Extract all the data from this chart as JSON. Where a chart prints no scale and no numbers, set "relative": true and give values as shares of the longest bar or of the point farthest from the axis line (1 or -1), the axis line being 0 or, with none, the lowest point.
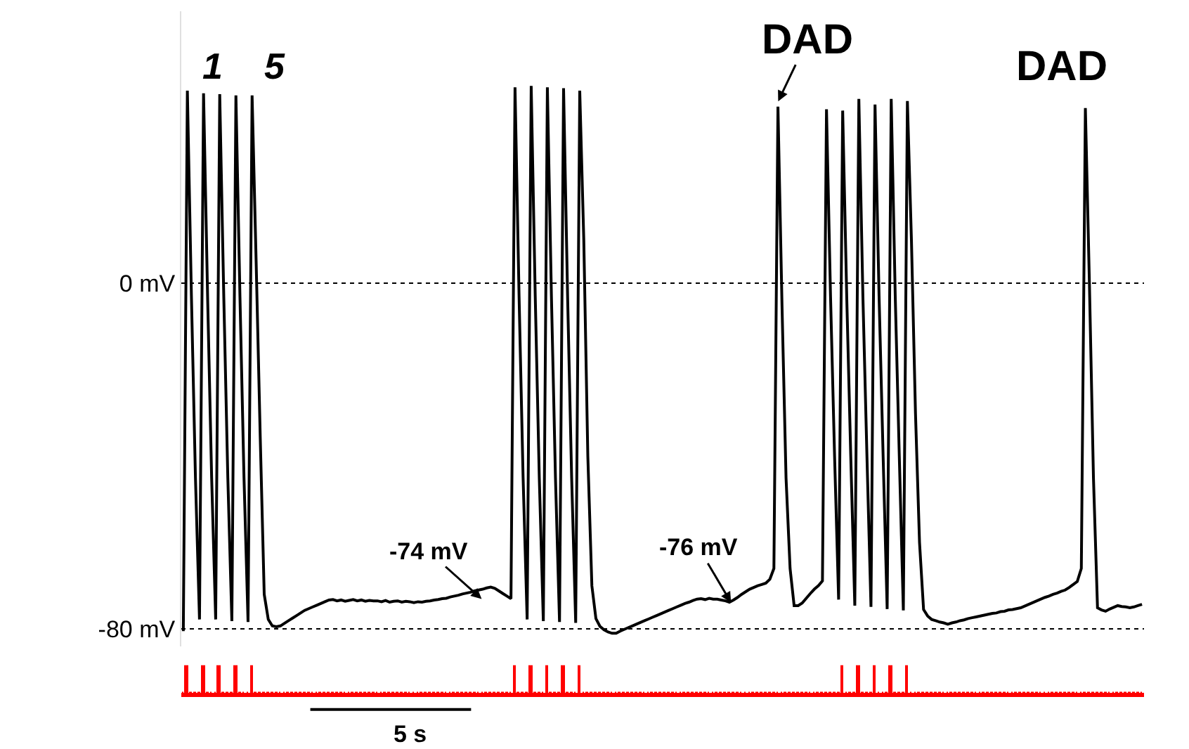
{
  "chart_data": [
    {
      "type": "line",
      "ylim": [
        -84,
        63
      ],
      "yticks": [
        {
          "value": 0,
          "label": "0 mV"
        },
        {
          "value": -80,
          "label": "-80 mV"
        }
      ],
      "tick_labels": "y",
      "grid": "y",
      "line_style": "solid",
      "categories": [
        null,
        null,
        null,
        null,
        null,
        null,
        null,
        null,
        null,
        null,
        null,
        null,
        null,
        null,
        null,
        null,
        null,
        null,
        null,
        null,
        null,
        null,
        null,
        null,
        null,
        null,
        null,
        null,
        null,
        null,
        null,
        null,
        null,
        null,
        null,
        null,
        null,
        null,
        null,
        null,
        null,
        null,
        null,
        null,
        null,
        null,
        null,
        null,
        null,
        null,
        null,
        null,
        null,
        null,
        null,
        null,
        null,
        null,
        null,
        null,
        null,
        null,
        null,
        null,
        null,
        null,
        null,
        null,
        null,
        null,
        null,
        null,
        null,
        null,
        null,
        null,
        null,
        null,
        null,
        null,
        null,
        null,
        null,
        null,
        null,
        null,
        null,
        null,
        null,
        null,
        null,
        null,
        null,
        null,
        null,
        null,
        null,
        null,
        null,
        null,
        null,
        null,
        null,
        null,
        null,
        null,
        null,
        null,
        null,
        null,
        null,
        null,
        null,
        null,
        null,
        null,
        null,
        null,
        null,
        null,
        null,
        null,
        null,
        null,
        null,
        null,
        null,
        null,
        null,
        null,
        null,
        null,
        null,
        null,
        null,
        null,
        null,
        null,
        null,
        null,
        null,
        null,
        null,
        null,
        null,
        null,
        null,
        null,
        null,
        null,
        null,
        null,
        null,
        null,
        null,
        null,
        null,
        null,
        null,
        null,
        null,
        null,
        null,
        null,
        null,
        null,
        null,
        null,
        null,
        null,
        null,
        null,
        null,
        null,
        null,
        null,
        null,
        null,
        null,
        null,
        null,
        null,
        null,
        null,
        null,
        null,
        null,
        null,
        null,
        null,
        null,
        null,
        null,
        null,
        null,
        null,
        null,
        null,
        null,
        null,
        null,
        null,
        null,
        null,
        null,
        null,
        null,
        null,
        null,
        null,
        null,
        null,
        null,
        null,
        null,
        null,
        null,
        null,
        null,
        null,
        null,
        null,
        null,
        null,
        null,
        null,
        null,
        null,
        null,
        null,
        null,
        null,
        null,
        null,
        null,
        null,
        null,
        null
      ],
      "series": [
        {
          "color": "#000000",
          "values": [
            -80.5,
            44.6,
            -3,
            -45,
            -77.8,
            44.0,
            -3,
            -45,
            -77.8,
            43.8,
            -3,
            -45,
            -78.2,
            43.5,
            -3,
            -45,
            -78.4,
            43.5,
            5,
            -35,
            -72,
            -77.8,
            -79.3,
            -79.5,
            -79.3,
            -78.7,
            -78.1,
            -77.5,
            -76.9,
            -76.3,
            -75.7,
            -75.3,
            -74.9,
            -74.5,
            -74.1,
            -73.7,
            -73.3,
            -73.2,
            -73.5,
            -73.3,
            -73.6,
            -73.4,
            -73.2,
            -73.5,
            -73.3,
            -73.6,
            -73.4,
            -73.5,
            -73.5,
            -73.7,
            -73.4,
            -73.8,
            -73.6,
            -73.5,
            -73.8,
            -73.6,
            -73.7,
            -73.9,
            -73.7,
            -73.8,
            -73.6,
            -73.5,
            -73.3,
            -73.2,
            -73.0,
            -72.9,
            -72.6,
            -72.4,
            -72.2,
            -71.9,
            -71.7,
            -71.5,
            -71.2,
            -71.0,
            -70.8,
            -70.5,
            -70.3,
            -70.6,
            -71.2,
            -71.8,
            -72.4,
            -73.0,
            45.4,
            -3,
            -45,
            -77.8,
            45.7,
            -3,
            -45,
            -78.2,
            45.4,
            -3,
            -45,
            -78.4,
            45.2,
            -3,
            -45,
            -78.6,
            44.6,
            10,
            -40,
            -70,
            -77.6,
            -79.4,
            -80.2,
            -80.7,
            -81.0,
            -81.0,
            -80.5,
            -80.1,
            -79.7,
            -79.3,
            -78.9,
            -78.5,
            -78.1,
            -77.7,
            -77.3,
            -76.9,
            -76.5,
            -76.1,
            -75.7,
            -75.3,
            -74.9,
            -74.5,
            -74.1,
            -73.8,
            -73.4,
            -73.1,
            -73.0,
            -73.2,
            -72.9,
            -73.1,
            -73.1,
            -73.3,
            -73.5,
            -73.8,
            -73.3,
            -72.7,
            -72.0,
            -71.4,
            -70.8,
            -70.4,
            -70.0,
            -69.7,
            -69.4,
            -68.5,
            -66.0,
            40.9,
            -5,
            -45,
            -66,
            -74.6,
            -74.6,
            -74.0,
            -72.9,
            -71.8,
            -70.8,
            -70.0,
            -68.9,
            40.3,
            -3,
            -40,
            -73.2,
            40.0,
            -3,
            -40,
            -74.6,
            42.7,
            -3,
            -40,
            -74.9,
            41.4,
            -3,
            -40,
            -75.4,
            42.7,
            -3,
            -40,
            -75.7,
            42.2,
            10,
            -30,
            -60,
            -75.5,
            -77.0,
            -77.8,
            -78.1,
            -78.4,
            -78.6,
            -78.9,
            -78.6,
            -78.4,
            -78.1,
            -77.9,
            -77.6,
            -77.4,
            -77.2,
            -77.0,
            -76.8,
            -76.6,
            -76.4,
            -76.3,
            -76.0,
            -75.9,
            -75.6,
            -75.5,
            -75.3,
            -75.1,
            -74.7,
            -74.3,
            -73.9,
            -73.5,
            -73.1,
            -72.7,
            -72.4,
            -72.0,
            -71.7,
            -71.3,
            -71.0,
            -70.4,
            -69.7,
            -69.0,
            -66,
            40.6,
            0,
            -45,
            -75.1,
            -75.6,
            -75.9,
            -75.4,
            -75.0,
            -74.6,
            -74.8,
            -74.9,
            -75.1,
            -74.9,
            -74.6,
            -74.3
          ]
        }
      ],
      "annotations": [
        "1",
        "5",
        "DAD",
        "DAD",
        "-74 mV",
        "-76 mV",
        "5 s"
      ]
    },
    {
      "type": "bar",
      "relative": true,
      "tick_labels": false,
      "categories": [
        null,
        null,
        null,
        null,
        null,
        null,
        null,
        null,
        null,
        null,
        null,
        null,
        null,
        null,
        null,
        null,
        null,
        null,
        null,
        null,
        null,
        null,
        null,
        null,
        null,
        null,
        null,
        null,
        null,
        null,
        null,
        null,
        null,
        null,
        null,
        null,
        null,
        null,
        null,
        null,
        null,
        null,
        null,
        null,
        null,
        null,
        null,
        null,
        null,
        null,
        null,
        null,
        null,
        null,
        null,
        null,
        null,
        null,
        null,
        null,
        null,
        null,
        null,
        null,
        null,
        null,
        null,
        null,
        null,
        null,
        null,
        null,
        null,
        null,
        null,
        null,
        null,
        null,
        null,
        null,
        null,
        null,
        null,
        null,
        null,
        null,
        null,
        null,
        null,
        null,
        null,
        null,
        null,
        null,
        null,
        null,
        null,
        null,
        null,
        null,
        null,
        null,
        null,
        null,
        null,
        null,
        null,
        null,
        null,
        null,
        null,
        null,
        null,
        null,
        null,
        null,
        null,
        null,
        null,
        null,
        null,
        null,
        null,
        null,
        null,
        null,
        null,
        null,
        null,
        null,
        null,
        null,
        null,
        null,
        null,
        null,
        null,
        null,
        null,
        null,
        null,
        null,
        null,
        null,
        null,
        null,
        null,
        null,
        null,
        null,
        null,
        null,
        null,
        null,
        null,
        null,
        null,
        null,
        null,
        null,
        null,
        null,
        null,
        null,
        null,
        null,
        null,
        null,
        null,
        null,
        null,
        null,
        null,
        null,
        null,
        null,
        null,
        null,
        null,
        null,
        null,
        null,
        null,
        null,
        null,
        null,
        null,
        null,
        null,
        null,
        null,
        null,
        null,
        null,
        null,
        null,
        null,
        null,
        null,
        null,
        null,
        null,
        null,
        null,
        null,
        null,
        null,
        null,
        null,
        null,
        null,
        null,
        null,
        null,
        null,
        null,
        null,
        null,
        null,
        null,
        null,
        null,
        null,
        null,
        null,
        null,
        null,
        null,
        null,
        null,
        null,
        null,
        null,
        null,
        null,
        null,
        null,
        null
      ],
      "series": [
        {
          "color": "#ff0000",
          "values": [
            0,
            1,
            0,
            0,
            0,
            1,
            0,
            0,
            0,
            1,
            0,
            0,
            0,
            1,
            0,
            0,
            0,
            1,
            0,
            0,
            0,
            0,
            0,
            0,
            0,
            0,
            0,
            0,
            0,
            0,
            0,
            0,
            0,
            0,
            0,
            0,
            0,
            0,
            0,
            0,
            0,
            0,
            0,
            0,
            0,
            0,
            0,
            0,
            0,
            0,
            0,
            0,
            0,
            0,
            0,
            0,
            0,
            0,
            0,
            0,
            0,
            0,
            0,
            0,
            0,
            0,
            0,
            0,
            0,
            0,
            0,
            0,
            0,
            0,
            0,
            0,
            0,
            0,
            0,
            0,
            0,
            0,
            1,
            0,
            0,
            0,
            1,
            0,
            0,
            0,
            1,
            0,
            0,
            0,
            1,
            0,
            0,
            0,
            1,
            0,
            0,
            0,
            0,
            0,
            0,
            0,
            0,
            0,
            0,
            0,
            0,
            0,
            0,
            0,
            0,
            0,
            0,
            0,
            0,
            0,
            0,
            0,
            0,
            0,
            0,
            0,
            0,
            0,
            0,
            0,
            0,
            0,
            0,
            0,
            0,
            0,
            0,
            0,
            0,
            0,
            0,
            0,
            0,
            0,
            0,
            0,
            0,
            0,
            0,
            0,
            0,
            0,
            0,
            0,
            0,
            0,
            0,
            0,
            0,
            0,
            0,
            0,
            0,
            1,
            0,
            0,
            0,
            1,
            0,
            0,
            0,
            1,
            0,
            0,
            0,
            1,
            0,
            0,
            0,
            1,
            0,
            0,
            0,
            0,
            0,
            0,
            0,
            0,
            0,
            0,
            0,
            0,
            0,
            0,
            0,
            0,
            0,
            0,
            0,
            0,
            0,
            0,
            0,
            0,
            0,
            0,
            0,
            0,
            0,
            0,
            0,
            0,
            0,
            0,
            0,
            0,
            0,
            0,
            0,
            0,
            0,
            0,
            0,
            0,
            0,
            0,
            0,
            0,
            0,
            0,
            0,
            0,
            0,
            0,
            0,
            0,
            0,
            0
          ]
        }
      ]
    }
  ]
}
